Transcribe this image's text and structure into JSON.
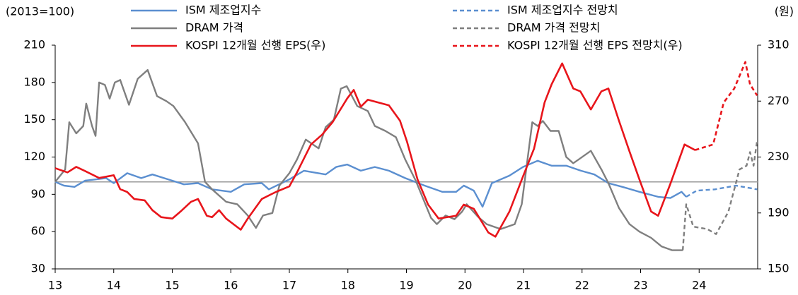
{
  "chart_data": {
    "type": "line",
    "y_label": "(2013=100)",
    "y2_label": "(원)",
    "xlim": [
      13,
      25
    ],
    "xticks": [
      13,
      14,
      15,
      16,
      17,
      18,
      19,
      20,
      21,
      22,
      23,
      24
    ],
    "ylim": [
      30,
      210
    ],
    "yticks": [
      30,
      60,
      90,
      120,
      150,
      180,
      210
    ],
    "y2lim": [
      150,
      310
    ],
    "y2ticks": [
      150,
      190,
      230,
      270,
      310
    ],
    "reference_line": 100,
    "series": [
      {
        "name": "ISM 제조업지수",
        "color": "#5b8fd0",
        "dashed": false,
        "axis": "y",
        "x": [
          13.0,
          13.15,
          13.33,
          13.51,
          13.87,
          14.0,
          14.23,
          14.47,
          14.66,
          15.0,
          15.2,
          15.44,
          15.68,
          16.0,
          16.23,
          16.53,
          16.65,
          17.0,
          17.25,
          17.62,
          17.8,
          17.99,
          18.22,
          18.46,
          18.7,
          18.98,
          19.31,
          19.61,
          19.85,
          19.98,
          20.15,
          20.3,
          20.46,
          20.76,
          20.99,
          21.24,
          21.48,
          21.73,
          21.98,
          22.21,
          22.45,
          22.69,
          22.98,
          23.3,
          23.51,
          23.7,
          23.78
        ],
        "values": [
          100,
          97,
          96,
          101,
          103,
          99,
          107,
          103,
          106,
          101,
          98,
          99,
          94,
          92,
          98,
          99,
          94,
          102,
          109,
          106,
          112,
          114,
          109,
          112,
          109,
          103,
          97,
          92,
          92,
          97,
          93,
          80,
          99,
          105,
          112,
          117,
          113,
          113,
          109,
          106,
          99,
          96,
          92,
          88,
          87,
          92,
          88
        ]
      },
      {
        "name": "DRAM 가격",
        "color": "#7f7f7f",
        "dashed": false,
        "axis": "y",
        "x": [
          13.0,
          13.17,
          13.24,
          13.36,
          13.48,
          13.53,
          13.63,
          13.69,
          13.75,
          13.85,
          13.93,
          14.02,
          14.11,
          14.26,
          14.41,
          14.58,
          14.74,
          14.9,
          15.02,
          15.22,
          15.44,
          15.56,
          15.68,
          15.92,
          16.11,
          16.29,
          16.43,
          16.55,
          16.71,
          16.83,
          17.0,
          17.13,
          17.28,
          17.5,
          17.62,
          17.76,
          17.88,
          17.98,
          18.16,
          18.34,
          18.46,
          18.64,
          18.82,
          18.98,
          19.16,
          19.28,
          19.42,
          19.52,
          19.67,
          19.82,
          19.95,
          20.03,
          20.22,
          20.37,
          20.61,
          20.85,
          20.97,
          21.15,
          21.24,
          21.33,
          21.46,
          21.6,
          21.73,
          21.85,
          21.97,
          22.15,
          22.33,
          22.45,
          22.63,
          22.81,
          22.98,
          23.18,
          23.36,
          23.54,
          23.72
        ],
        "values": [
          100,
          110,
          148,
          139,
          145,
          163,
          145,
          137,
          180,
          178,
          167,
          180,
          182,
          162,
          183,
          190,
          169,
          165,
          161,
          148,
          131,
          100,
          94,
          84,
          82,
          73,
          63,
          73,
          75,
          97,
          107,
          118,
          134,
          127,
          144,
          150,
          175,
          177,
          161,
          157,
          145,
          141,
          136,
          118,
          101,
          87,
          71,
          66,
          73,
          70,
          76,
          82,
          72,
          66,
          62,
          66,
          82,
          148,
          145,
          149,
          141,
          141,
          120,
          115,
          119,
          125,
          110,
          99,
          79,
          66,
          60,
          55,
          48,
          45,
          45
        ]
      },
      {
        "name": "KOSPI 12개월 선행 EPS(우)",
        "color": "#e8151b",
        "dashed": false,
        "axis": "y2",
        "x": [
          13.0,
          13.21,
          13.36,
          13.51,
          13.75,
          14.0,
          14.11,
          14.23,
          14.35,
          14.53,
          14.66,
          14.81,
          15.0,
          15.14,
          15.32,
          15.44,
          15.59,
          15.68,
          15.8,
          15.92,
          16.17,
          16.29,
          16.53,
          16.77,
          17.0,
          17.13,
          17.37,
          17.56,
          17.74,
          17.99,
          18.1,
          18.22,
          18.34,
          18.52,
          18.7,
          18.89,
          19.01,
          19.19,
          19.37,
          19.55,
          19.85,
          19.98,
          20.15,
          20.4,
          20.52,
          20.76,
          20.99,
          21.18,
          21.36,
          21.48,
          21.66,
          21.85,
          21.97,
          22.15,
          22.33,
          22.45,
          22.63,
          22.81,
          22.98,
          23.18,
          23.3,
          23.51,
          23.75,
          23.93
        ],
        "values": [
          222,
          219,
          223,
          220,
          215,
          217,
          207,
          205,
          200,
          199,
          192,
          187,
          186,
          191,
          198,
          200,
          188,
          187,
          192,
          186,
          178,
          186,
          200,
          205,
          209,
          219,
          239,
          246,
          255,
          272,
          278,
          266,
          271,
          269,
          267,
          256,
          241,
          214,
          196,
          186,
          188,
          196,
          193,
          176,
          173,
          191,
          216,
          236,
          269,
          282,
          297,
          279,
          277,
          264,
          277,
          279,
          256,
          234,
          214,
          191,
          188,
          211,
          239,
          235
        ]
      },
      {
        "name": "ISM 제조업지수 전망치",
        "color": "#5b8fd0",
        "dashed": true,
        "axis": "y",
        "x": [
          23.78,
          23.96,
          24.27,
          24.63,
          24.99
        ],
        "values": [
          88,
          93,
          94,
          97,
          94
        ]
      },
      {
        "name": "DRAM 가격 전망치",
        "color": "#7f7f7f",
        "dashed": true,
        "axis": "y",
        "x": [
          23.72,
          23.78,
          23.9,
          24.14,
          24.29,
          24.5,
          24.69,
          24.81,
          24.87,
          24.93,
          24.99
        ],
        "values": [
          45,
          82,
          64,
          62,
          58,
          76,
          110,
          113,
          124,
          113,
          133
        ]
      },
      {
        "name": "KOSPI 12개월 선행 EPS 전망치(우)",
        "color": "#e8151b",
        "dashed": true,
        "axis": "y2",
        "x": [
          23.93,
          24.24,
          24.42,
          24.6,
          24.79,
          24.87,
          24.99
        ],
        "values": [
          235,
          239,
          269,
          279,
          298,
          282,
          274
        ]
      }
    ]
  }
}
